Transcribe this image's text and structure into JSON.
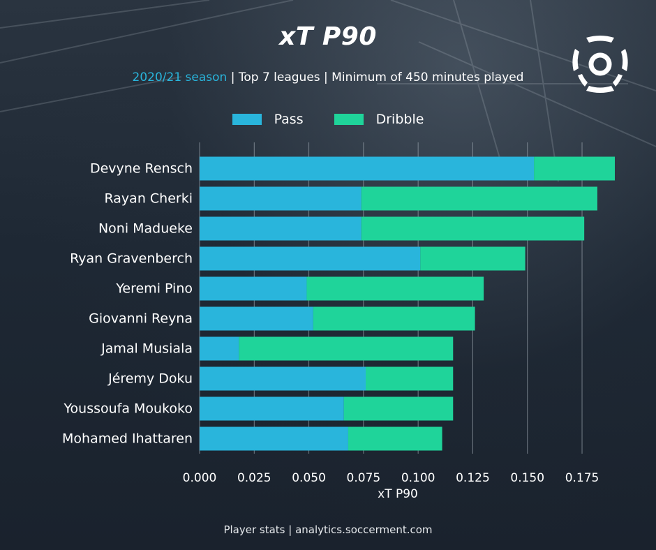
{
  "title": "xT P90",
  "subtitle": {
    "season": "2020/21 season",
    "rest": " | Top 7 leagues | Minimum of 450 minutes played"
  },
  "footer": "Player stats | analytics.soccerment.com",
  "colors": {
    "pass": "#29b5dc",
    "dribble": "#1fd49a",
    "grid": "#9aa4ad"
  },
  "chart_data": {
    "type": "bar",
    "orientation": "horizontal",
    "stacked": true,
    "categories": [
      "Devyne Rensch",
      "Rayan Cherki",
      "Noni Madueke",
      "Ryan Gravenberch",
      "Yeremi Pino",
      "Giovanni Reyna",
      "Jamal Musiala",
      "Jéremy Doku",
      "Youssoufa Moukoko",
      "Mohamed Ihattaren"
    ],
    "series": [
      {
        "name": "Pass",
        "values": [
          0.153,
          0.074,
          0.074,
          0.101,
          0.049,
          0.052,
          0.018,
          0.076,
          0.066,
          0.068
        ]
      },
      {
        "name": "Dribble",
        "values": [
          0.037,
          0.108,
          0.102,
          0.048,
          0.081,
          0.074,
          0.098,
          0.04,
          0.05,
          0.043
        ]
      }
    ],
    "xlabel": "xT P90",
    "ylabel": "",
    "xlim": [
      0,
      0.19
    ],
    "xticks": [
      "0.000",
      "0.025",
      "0.050",
      "0.075",
      "0.100",
      "0.125",
      "0.150",
      "0.175"
    ],
    "grid": "vertical",
    "legend": "top-center"
  }
}
